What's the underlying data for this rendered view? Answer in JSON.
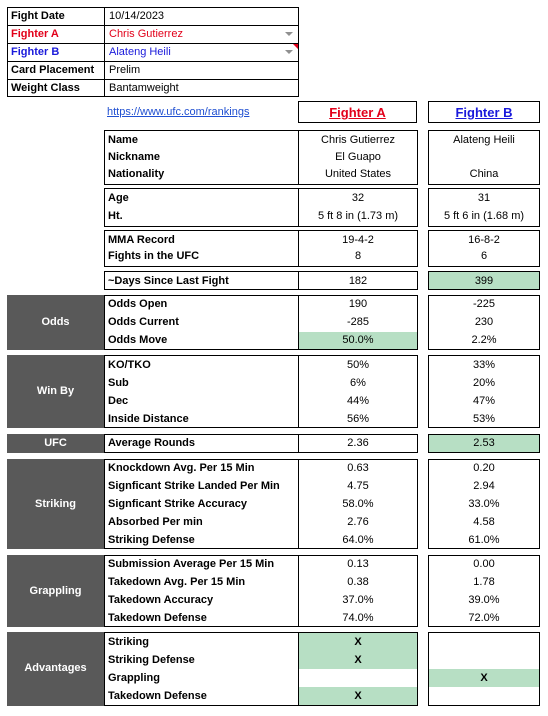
{
  "header": {
    "rows": [
      {
        "label": "Fight Date",
        "value": "10/14/2023"
      },
      {
        "label": "Fighter A",
        "value": "Chris Gutierrez"
      },
      {
        "label": "Fighter B",
        "value": "Alateng Heili"
      },
      {
        "label": "Card Placement",
        "value": "Prelim"
      },
      {
        "label": "Weight Class",
        "value": "Bantamweight"
      }
    ],
    "colors": {
      "fighter_a": "#e2001a",
      "fighter_b": "#1a1adb"
    }
  },
  "link": "https://www.ufc.com/rankings",
  "col_a": "Fighter A",
  "col_b": "Fighter B",
  "info": {
    "name": {
      "label": "Name",
      "a": "Chris Gutierrez",
      "b": "Alateng Heili"
    },
    "nickname": {
      "label": "Nickname",
      "a": "El Guapo",
      "b": ""
    },
    "nationality": {
      "label": "Nationality",
      "a": "United States",
      "b": "China"
    },
    "age": {
      "label": "Age",
      "a": "32",
      "b": "31"
    },
    "height": {
      "label": "Ht.",
      "a": "5 ft 8 in (1.73 m)",
      "b": "5 ft 6 in (1.68 m)"
    },
    "record": {
      "label": "MMA Record",
      "a": "19-4-2",
      "b": "16-8-2"
    },
    "fights": {
      "label": "Fights in the UFC",
      "a": "8",
      "b": "6"
    },
    "days": {
      "label": "~Days Since Last Fight",
      "a": "182",
      "b": "399"
    }
  },
  "sections": {
    "odds": {
      "title": "Odds",
      "rows": [
        {
          "label": "Odds Open",
          "a": "190",
          "b": "-225"
        },
        {
          "label": "Odds Current",
          "a": "-285",
          "b": "230"
        },
        {
          "label": "Odds Move",
          "a": "50.0%",
          "b": "2.2%"
        }
      ]
    },
    "winby": {
      "title": "Win By",
      "rows": [
        {
          "label": "KO/TKO",
          "a": "50%",
          "b": "33%"
        },
        {
          "label": "Sub",
          "a": "6%",
          "b": "20%"
        },
        {
          "label": "Dec",
          "a": "44%",
          "b": "47%"
        },
        {
          "label": "Inside Distance",
          "a": "56%",
          "b": "53%"
        }
      ]
    },
    "ufc": {
      "title": "UFC",
      "rows": [
        {
          "label": "Average Rounds",
          "a": "2.36",
          "b": "2.53"
        }
      ]
    },
    "striking": {
      "title": "Striking",
      "rows": [
        {
          "label": "Knockdown Avg. Per 15 Min",
          "a": "0.63",
          "b": "0.20"
        },
        {
          "label": "Signficant Strike Landed Per Min",
          "a": "4.75",
          "b": "2.94"
        },
        {
          "label": "Signficant Strike Accuracy",
          "a": "58.0%",
          "b": "33.0%"
        },
        {
          "label": "Absorbed Per min",
          "a": "2.76",
          "b": "4.58"
        },
        {
          "label": "Striking Defense",
          "a": "64.0%",
          "b": "61.0%"
        }
      ]
    },
    "grappling": {
      "title": "Grappling",
      "rows": [
        {
          "label": "Submission Average  Per 15 Min",
          "a": "0.13",
          "b": "0.00"
        },
        {
          "label": "Takedown Avg. Per 15 Min",
          "a": "0.38",
          "b": "1.78"
        },
        {
          "label": "Takedown Accuracy",
          "a": "37.0%",
          "b": "39.0%"
        },
        {
          "label": "Takedown Defense",
          "a": "74.0%",
          "b": "72.0%"
        }
      ]
    },
    "advantages": {
      "title": "Advantages",
      "rows": [
        {
          "label": "Striking",
          "a": "X",
          "b": ""
        },
        {
          "label": "Striking Defense",
          "a": "X",
          "b": ""
        },
        {
          "label": "Grappling",
          "a": "",
          "b": "X"
        },
        {
          "label": "Takedown Defense",
          "a": "X",
          "b": ""
        }
      ]
    }
  }
}
